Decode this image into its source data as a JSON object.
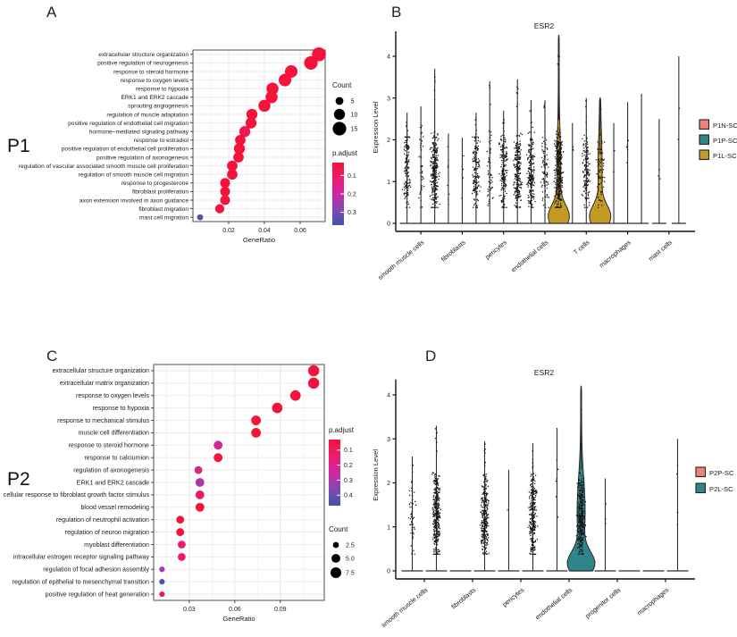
{
  "panels": {
    "a": {
      "letter": "A",
      "group_label": "P1",
      "chart_data": {
        "type": "scatter",
        "subtype": "go-enrichment-dotplot",
        "xlabel": "GeneRatio",
        "x_ticks": [
          0.02,
          0.04,
          0.06
        ],
        "xlim": [
          0.0,
          0.074
        ],
        "terms": [
          {
            "label": "extracellular structure organization",
            "gene_ratio": 0.0705,
            "count": 16,
            "p_adjust": 0.01
          },
          {
            "label": "positive regulation of neurogenesis",
            "gene_ratio": 0.066,
            "count": 15,
            "p_adjust": 0.01
          },
          {
            "label": "response to steroid hormone",
            "gene_ratio": 0.055,
            "count": 13,
            "p_adjust": 0.01
          },
          {
            "label": "response to oxygen levels",
            "gene_ratio": 0.0515,
            "count": 13,
            "p_adjust": 0.01
          },
          {
            "label": "response to hypoxia",
            "gene_ratio": 0.0445,
            "count": 12,
            "p_adjust": 0.01
          },
          {
            "label": "ERK1 and ERK2 cascade",
            "gene_ratio": 0.044,
            "count": 12,
            "p_adjust": 0.02
          },
          {
            "label": "sprouting angiogenesis",
            "gene_ratio": 0.04,
            "count": 12,
            "p_adjust": 0.02
          },
          {
            "label": "regulation of muscle adaptation",
            "gene_ratio": 0.033,
            "count": 10,
            "p_adjust": 0.02
          },
          {
            "label": "positive regulation of endothelial cell migration",
            "gene_ratio": 0.0325,
            "count": 10,
            "p_adjust": 0.02
          },
          {
            "label": "hormone−mediated signaling pathway",
            "gene_ratio": 0.029,
            "count": 10,
            "p_adjust": 0.08
          },
          {
            "label": "response to estradiol",
            "gene_ratio": 0.0265,
            "count": 9,
            "p_adjust": 0.02
          },
          {
            "label": "positive regulation of endothelial cell proliferation",
            "gene_ratio": 0.026,
            "count": 10,
            "p_adjust": 0.02
          },
          {
            "label": "positive regulation of axonogenesis",
            "gene_ratio": 0.0255,
            "count": 9,
            "p_adjust": 0.03
          },
          {
            "label": "regulation of vascular associated smooth muscle cell proliferation",
            "gene_ratio": 0.022,
            "count": 9,
            "p_adjust": 0.02
          },
          {
            "label": "regulation of smooth muscle cell migration",
            "gene_ratio": 0.022,
            "count": 9,
            "p_adjust": 0.02
          },
          {
            "label": "response to progesterone",
            "gene_ratio": 0.018,
            "count": 8,
            "p_adjust": 0.02
          },
          {
            "label": "fibroblast proliferation",
            "gene_ratio": 0.018,
            "count": 8,
            "p_adjust": 0.02
          },
          {
            "label": "axon extension involved in axon guidance",
            "gene_ratio": 0.018,
            "count": 8,
            "p_adjust": 0.03
          },
          {
            "label": "fibroblast migration",
            "gene_ratio": 0.015,
            "count": 7,
            "p_adjust": 0.02
          },
          {
            "label": "mast cell migration",
            "gene_ratio": 0.004,
            "count": 3,
            "p_adjust": 0.35
          }
        ],
        "legend": {
          "count": {
            "title": "Count",
            "values": [
              "5",
              "10",
              "15"
            ]
          },
          "p_adjust": {
            "title": "p.adjust",
            "ticks": [
              0.1,
              0.2,
              0.3
            ],
            "domain": [
              0.03,
              0.37
            ],
            "gradient": [
              "#F5123B",
              "#EC1C6E",
              "#CE28A3",
              "#8147B3",
              "#3E55A9"
            ]
          }
        }
      }
    },
    "b": {
      "letter": "B",
      "chart_data": {
        "type": "violin",
        "title": "ESR2",
        "ylabel": "Expression Level",
        "y_ticks": [
          0,
          1,
          2,
          3,
          4
        ],
        "ylim": [
          0,
          4.6
        ],
        "categories": [
          "smooth muscle cells",
          "fibroblasts",
          "pericytes",
          "endothelial cells",
          "T cells",
          "macrophages",
          "mast cells"
        ],
        "samples": [
          "P1N-SC",
          "P1P-SC",
          "P1L-SC"
        ],
        "legend": {
          "items": [
            {
              "label": "P1N-SC",
              "color": "#F08072"
            },
            {
              "label": "P1P-SC",
              "color": "#2E8788"
            },
            {
              "label": "P1L-SC",
              "color": "#C49A26"
            }
          ]
        },
        "violins": [
          {
            "category": "smooth muscle cells",
            "sample": "P1N-SC",
            "max": 2.65,
            "n_points": 150,
            "filled": false
          },
          {
            "category": "smooth muscle cells",
            "sample": "P1P-SC",
            "max": 2.8,
            "n_points": 40,
            "filled": false
          },
          {
            "category": "smooth muscle cells",
            "sample": "P1L-SC",
            "max": 3.7,
            "n_points": 300,
            "filled": false
          },
          {
            "category": "fibroblasts",
            "sample": "P1N-SC",
            "max": 2.15,
            "n_points": 8,
            "filled": false
          },
          {
            "category": "fibroblasts",
            "sample": "P1P-SC",
            "max": 2.05,
            "n_points": 4,
            "filled": false
          },
          {
            "category": "fibroblasts",
            "sample": "P1L-SC",
            "max": 2.65,
            "n_points": 160,
            "filled": false
          },
          {
            "category": "pericytes",
            "sample": "P1N-SC",
            "max": 3.4,
            "n_points": 60,
            "filled": false
          },
          {
            "category": "pericytes",
            "sample": "P1P-SC",
            "max": 2.7,
            "n_points": 200,
            "filled": false
          },
          {
            "category": "pericytes",
            "sample": "P1L-SC",
            "max": 3.45,
            "n_points": 260,
            "filled": false
          },
          {
            "category": "endothelial cells",
            "sample": "P1N-SC",
            "max": 2.95,
            "n_points": 220,
            "filled": false
          },
          {
            "category": "endothelial cells",
            "sample": "P1P-SC",
            "max": 2.95,
            "n_points": 90,
            "filled": false
          },
          {
            "category": "endothelial cells",
            "sample": "P1L-SC",
            "max": 4.5,
            "n_points": 420,
            "filled": true
          },
          {
            "category": "T cells",
            "sample": "P1N-SC",
            "max": 2.4,
            "n_points": 3,
            "filled": false
          },
          {
            "category": "T cells",
            "sample": "P1P-SC",
            "max": 3.0,
            "n_points": 170,
            "filled": false
          },
          {
            "category": "T cells",
            "sample": "P1L-SC",
            "max": 3.0,
            "n_points": 90,
            "filled": true
          },
          {
            "category": "macrophages",
            "sample": "P1N-SC",
            "max": 2.4,
            "n_points": 3,
            "filled": false
          },
          {
            "category": "macrophages",
            "sample": "P1P-SC",
            "max": 2.9,
            "n_points": 5,
            "filled": false
          },
          {
            "category": "macrophages",
            "sample": "P1L-SC",
            "max": 3.1,
            "n_points": 0,
            "filled": false
          },
          {
            "category": "mast cells",
            "sample": "P1N-SC",
            "max": 2.5,
            "n_points": 4,
            "filled": false
          },
          {
            "category": "mast cells",
            "sample": "P1L-SC",
            "max": 4.0,
            "n_points": 2,
            "filled": false
          }
        ]
      }
    },
    "c": {
      "letter": "C",
      "group_label": "P2",
      "chart_data": {
        "type": "scatter",
        "subtype": "go-enrichment-dotplot",
        "xlabel": "GeneRatio",
        "x_ticks": [
          0.03,
          0.06,
          0.09
        ],
        "xlim": [
          0.0065,
          0.119
        ],
        "terms": [
          {
            "label": "extracellular structure organization",
            "gene_ratio": 0.112,
            "count": 8,
            "p_adjust": 0.01
          },
          {
            "label": "extracellular matrix organization",
            "gene_ratio": 0.112,
            "count": 8,
            "p_adjust": 0.01
          },
          {
            "label": "response to oxygen levels",
            "gene_ratio": 0.1,
            "count": 7,
            "p_adjust": 0.01
          },
          {
            "label": "response to hypoxia",
            "gene_ratio": 0.088,
            "count": 7,
            "p_adjust": 0.01
          },
          {
            "label": "response to mechanical stimulus",
            "gene_ratio": 0.074,
            "count": 6,
            "p_adjust": 0.02
          },
          {
            "label": "muscle cell differentiation",
            "gene_ratio": 0.074,
            "count": 6,
            "p_adjust": 0.03
          },
          {
            "label": "response to steroid hormone",
            "gene_ratio": 0.049,
            "count": 5,
            "p_adjust": 0.22
          },
          {
            "label": "response to calciumion",
            "gene_ratio": 0.049,
            "count": 5,
            "p_adjust": 0.02
          },
          {
            "label": "regulation of axonogenesis",
            "gene_ratio": 0.036,
            "count": 4,
            "p_adjust": 0.2
          },
          {
            "label": "ERK1 and ERK2 cascade",
            "gene_ratio": 0.037,
            "count": 5,
            "p_adjust": 0.3
          },
          {
            "label": "cellular response to fibroblast growth factor stimulus",
            "gene_ratio": 0.037,
            "count": 5,
            "p_adjust": 0.12
          },
          {
            "label": "blood vessel remodeling",
            "gene_ratio": 0.037,
            "count": 5,
            "p_adjust": 0.02
          },
          {
            "label": "regulation of neutrophil activation",
            "gene_ratio": 0.024,
            "count": 4,
            "p_adjust": 0.02
          },
          {
            "label": "regulation of neuron migration",
            "gene_ratio": 0.024,
            "count": 4,
            "p_adjust": 0.03
          },
          {
            "label": "myoblast differentiation",
            "gene_ratio": 0.025,
            "count": 4,
            "p_adjust": 0.15
          },
          {
            "label": "intracellular estrogen receptor signaling pathway",
            "gene_ratio": 0.025,
            "count": 4,
            "p_adjust": 0.12
          },
          {
            "label": "regulation of focal adhesion assembly",
            "gene_ratio": 0.012,
            "count": 2,
            "p_adjust": 0.32
          },
          {
            "label": "regulation of epithelial to mesenchymal transition",
            "gene_ratio": 0.012,
            "count": 2,
            "p_adjust": 0.46
          },
          {
            "label": "positive regulation of heat generation",
            "gene_ratio": 0.012,
            "count": 2,
            "p_adjust": 0.12
          }
        ],
        "legend": {
          "p_adjust": {
            "title": "p.adjust",
            "ticks": [
              0.1,
              0.2,
              0.3,
              0.4
            ],
            "domain": [
              0.03,
              0.47
            ],
            "gradient": [
              "#F5123B",
              "#EC1C6E",
              "#CE28A3",
              "#8147B3",
              "#3E55A9"
            ]
          },
          "count": {
            "title": "Count",
            "values": [
              "2.5",
              "5.0",
              "7.5"
            ]
          }
        }
      }
    },
    "d": {
      "letter": "D",
      "chart_data": {
        "type": "violin",
        "title": "ESR2",
        "ylabel": "Expression Level",
        "y_ticks": [
          0,
          1,
          2,
          3,
          4
        ],
        "ylim": [
          0,
          4.35
        ],
        "categories": [
          "smooth muscle cells",
          "fibroblasts",
          "pericytes",
          "endothelial cells",
          "progenitor cells",
          "macrophages"
        ],
        "samples": [
          "P2P-SC",
          "P2L-SC"
        ],
        "legend": {
          "items": [
            {
              "label": "P2P-SC",
              "color": "#F08072"
            },
            {
              "label": "P2L-SC",
              "color": "#2F8688"
            }
          ]
        },
        "violins": [
          {
            "category": "smooth muscle cells",
            "sample": "P2P-SC",
            "max": 2.6,
            "n_points": 60,
            "filled": false
          },
          {
            "category": "smooth muscle cells",
            "sample": "P2L-SC",
            "max": 3.3,
            "n_points": 380,
            "filled": false
          },
          {
            "category": "fibroblasts",
            "sample": "P2P-SC",
            "max": 0,
            "n_points": 0,
            "filled": false
          },
          {
            "category": "fibroblasts",
            "sample": "P2L-SC",
            "max": 2.95,
            "n_points": 330,
            "filled": false
          },
          {
            "category": "pericytes",
            "sample": "P2P-SC",
            "max": 2.3,
            "n_points": 1,
            "filled": false
          },
          {
            "category": "pericytes",
            "sample": "P2L-SC",
            "max": 2.9,
            "n_points": 300,
            "filled": false
          },
          {
            "category": "endothelial cells",
            "sample": "P2P-SC",
            "max": 3.25,
            "n_points": 6,
            "filled": false
          },
          {
            "category": "endothelial cells",
            "sample": "P2L-SC",
            "max": 4.2,
            "n_points": 400,
            "filled": true
          },
          {
            "category": "progenitor cells",
            "sample": "P2P-SC",
            "max": 2.1,
            "n_points": 3,
            "filled": false
          },
          {
            "category": "progenitor cells",
            "sample": "P2L-SC",
            "max": 0,
            "n_points": 0,
            "filled": false
          },
          {
            "category": "macrophages",
            "sample": "P2P-SC",
            "max": 0,
            "n_points": 0,
            "filled": false
          },
          {
            "category": "macrophages",
            "sample": "P2L-SC",
            "max": 3.0,
            "n_points": 5,
            "filled": false
          }
        ]
      }
    }
  }
}
